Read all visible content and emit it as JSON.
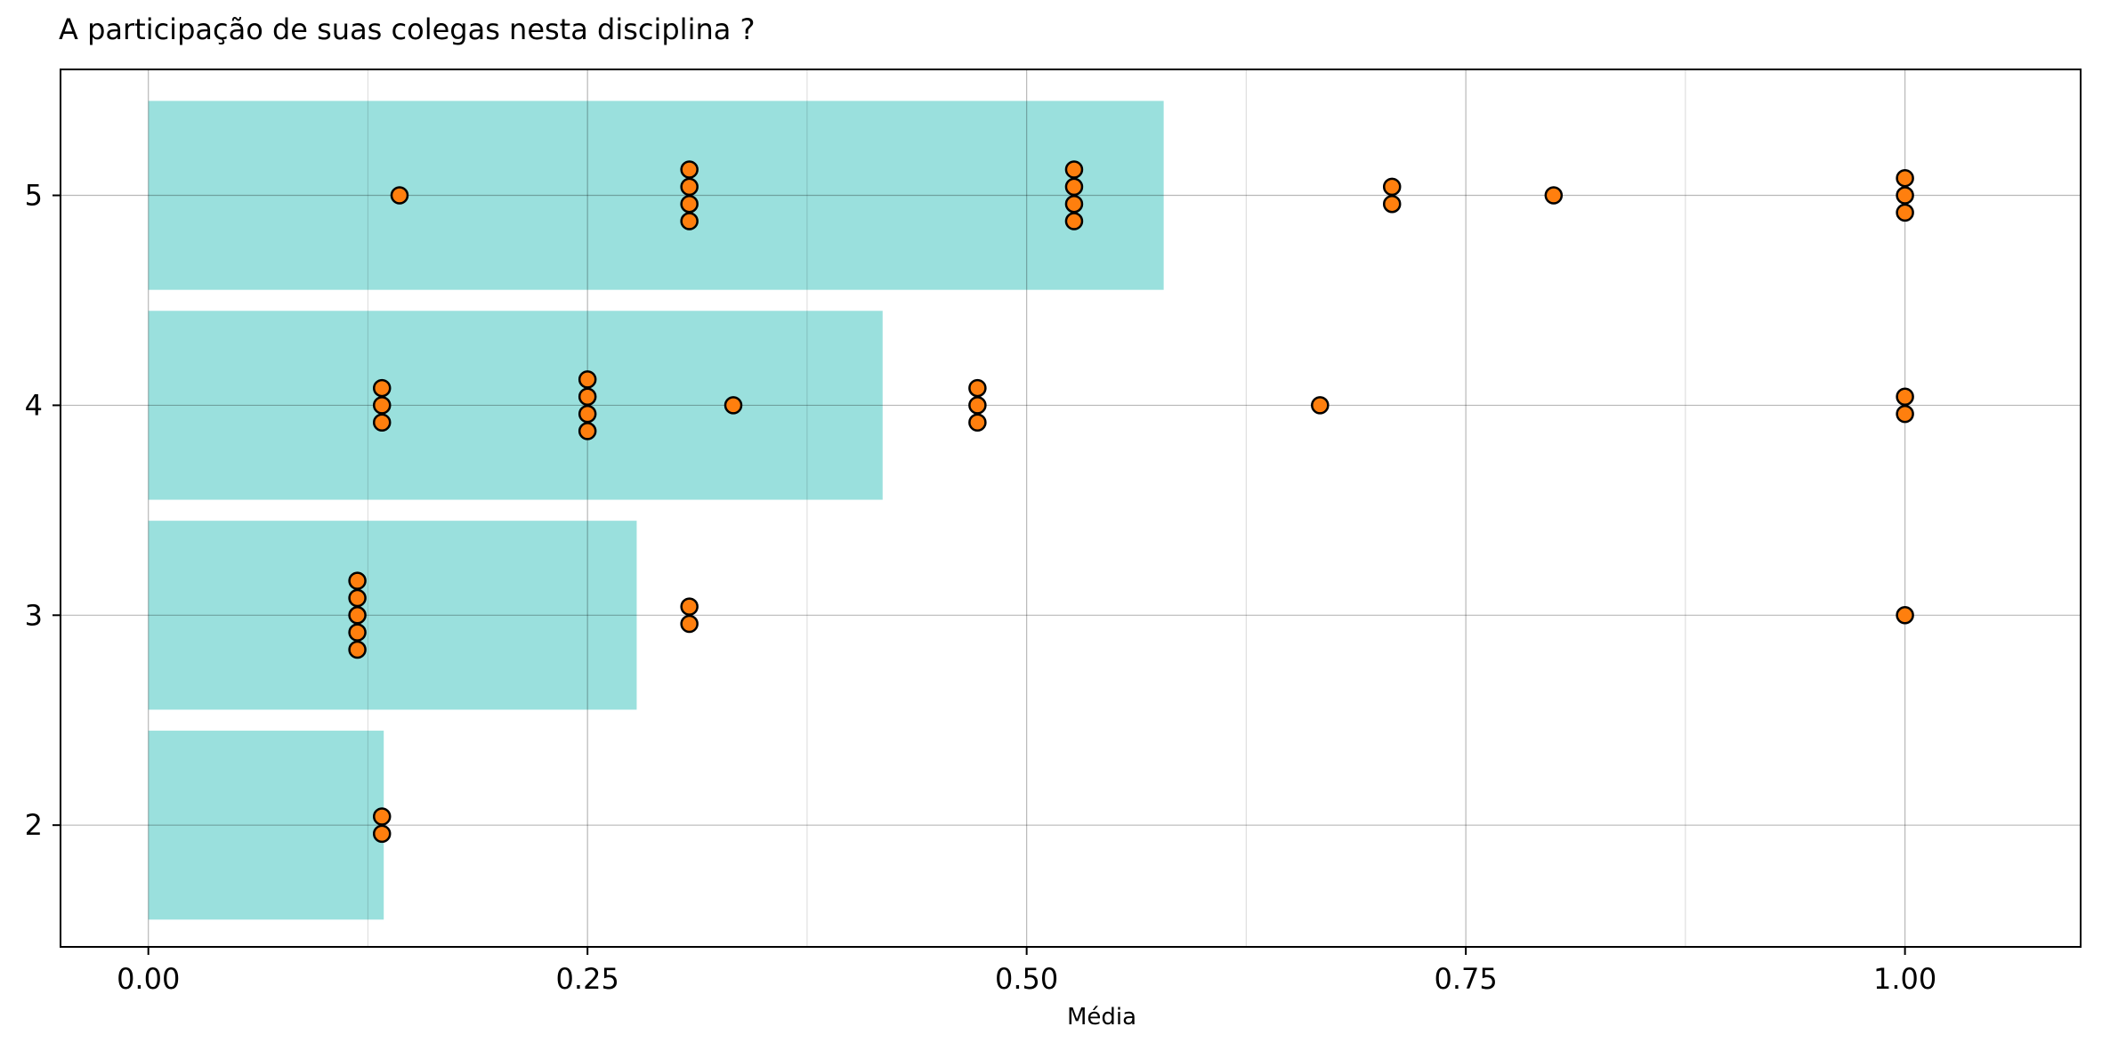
{
  "chart_data": {
    "type": "bar",
    "orientation": "horizontal",
    "title": "A participação de suas colegas nesta disciplina ?",
    "xlabel": "Média",
    "ylabel": "",
    "xlim": [
      -0.05,
      1.1
    ],
    "ylim": [
      1.42,
      5.6
    ],
    "x_ticks": [
      0.0,
      0.25,
      0.5,
      0.75,
      1.0
    ],
    "x_tick_labels": [
      "0.00",
      "0.25",
      "0.50",
      "0.75",
      "1.00"
    ],
    "x_minor_gridlines": [
      0.125,
      0.375,
      0.625,
      0.875
    ],
    "y_ticks": [
      2,
      3,
      4,
      5
    ],
    "y_tick_labels": [
      "2",
      "3",
      "4",
      "5"
    ],
    "grid": true,
    "bar_color": "#9ae0dd",
    "point_color": "#ff7f0e",
    "point_edge_color": "#000000",
    "bars": [
      {
        "category": 2,
        "value": 0.134
      },
      {
        "category": 3,
        "value": 0.278
      },
      {
        "category": 4,
        "value": 0.418
      },
      {
        "category": 5,
        "value": 0.578
      }
    ],
    "points": [
      {
        "category": 5,
        "x": 0.143,
        "count": 1
      },
      {
        "category": 5,
        "x": 0.308,
        "count": 4
      },
      {
        "category": 5,
        "x": 0.527,
        "count": 4
      },
      {
        "category": 5,
        "x": 0.708,
        "count": 2
      },
      {
        "category": 5,
        "x": 0.8,
        "count": 1
      },
      {
        "category": 5,
        "x": 1.0,
        "count": 3
      },
      {
        "category": 4,
        "x": 0.133,
        "count": 3
      },
      {
        "category": 4,
        "x": 0.25,
        "count": 4
      },
      {
        "category": 4,
        "x": 0.333,
        "count": 1
      },
      {
        "category": 4,
        "x": 0.472,
        "count": 3
      },
      {
        "category": 4,
        "x": 0.667,
        "count": 1
      },
      {
        "category": 4,
        "x": 1.0,
        "count": 2
      },
      {
        "category": 3,
        "x": 0.119,
        "count": 5
      },
      {
        "category": 3,
        "x": 0.308,
        "count": 2
      },
      {
        "category": 3,
        "x": 1.0,
        "count": 1
      },
      {
        "category": 2,
        "x": 0.133,
        "count": 2
      }
    ]
  }
}
